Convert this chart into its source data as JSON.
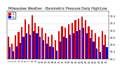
{
  "title": "Milwaukee Weather - Barometric Pressure Daily High/Low",
  "bar_width": 0.45,
  "background_color": "#ffffff",
  "high_color": "#dd0000",
  "low_color": "#0000dd",
  "days": [
    1,
    2,
    3,
    4,
    5,
    6,
    7,
    8,
    9,
    10,
    11,
    12,
    13,
    14,
    15,
    16,
    17,
    18,
    19,
    20,
    21,
    22,
    23,
    24,
    25,
    26,
    27,
    28,
    29,
    30
  ],
  "highs": [
    29.82,
    29.62,
    29.85,
    29.95,
    30.1,
    30.3,
    30.18,
    30.42,
    30.22,
    30.12,
    30.08,
    29.92,
    29.82,
    29.88,
    29.72,
    29.98,
    30.12,
    30.08,
    30.18,
    30.22,
    30.28,
    30.32,
    30.38,
    30.28,
    30.12,
    30.02,
    29.92,
    29.82,
    29.98,
    29.88
  ],
  "lows": [
    29.52,
    29.4,
    29.55,
    29.65,
    29.82,
    29.92,
    29.88,
    29.98,
    29.92,
    29.82,
    29.72,
    29.62,
    29.55,
    29.52,
    29.42,
    29.68,
    29.82,
    29.78,
    29.88,
    29.92,
    29.98,
    30.02,
    30.08,
    29.92,
    29.78,
    29.68,
    29.48,
    29.38,
    29.58,
    29.52
  ],
  "ylim_low": 29.2,
  "ylim_high": 30.55,
  "ytick_vals": [
    29.2,
    29.4,
    29.6,
    29.8,
    30.0,
    30.2,
    30.4
  ],
  "ytick_labels": [
    "29.2",
    "29.4",
    "29.6",
    "29.8",
    "30.0",
    "30.2",
    "30.4"
  ],
  "legend_high": "Hi",
  "legend_low": "Lo",
  "title_fontsize": 3.5,
  "tick_fontsize": 2.5,
  "legend_fontsize": 2.2
}
